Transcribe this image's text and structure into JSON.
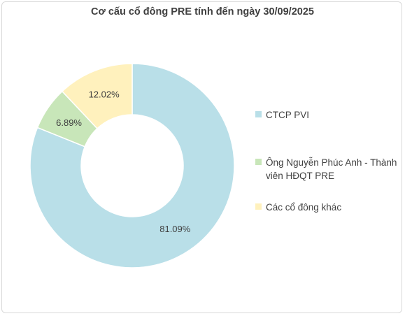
{
  "chart_data": {
    "type": "pie",
    "title": "Cơ cấu cổ đông PRE tính đến ngày 30/09/2025",
    "donut": true,
    "legend_position": "right",
    "series": [
      {
        "name": "CTCP PVI",
        "value": 81.09,
        "label": "81.09%",
        "color": "#b9dfe8"
      },
      {
        "name": "Ông Nguyễn Phúc Anh - Thành viên HĐQT PRE",
        "value": 6.89,
        "label": "6.89%",
        "color": "#c8e6b9"
      },
      {
        "name": "Các cổ đông khác",
        "value": 12.02,
        "label": "12.02%",
        "color": "#fff1bd"
      }
    ]
  }
}
